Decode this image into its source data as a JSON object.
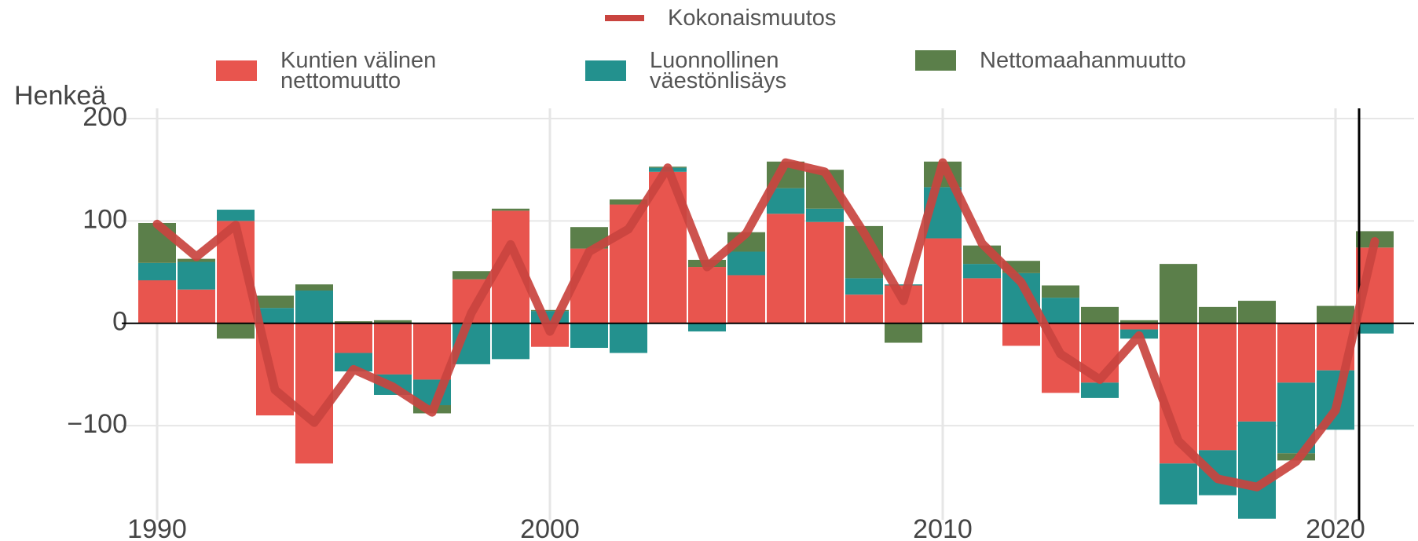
{
  "chart_data": {
    "type": "bar",
    "y_label": "Henkeä",
    "x": [
      1990,
      1991,
      1992,
      1993,
      1994,
      1995,
      1996,
      1997,
      1998,
      1999,
      2000,
      2001,
      2002,
      2003,
      2004,
      2005,
      2006,
      2007,
      2008,
      2009,
      2010,
      2011,
      2012,
      2013,
      2014,
      2015,
      2016,
      2017,
      2018,
      2019,
      2020,
      2021
    ],
    "series": [
      {
        "name": "Kuntien välinen nettomuutto",
        "color": "#e8554e",
        "type": "bar",
        "values": [
          42,
          33,
          100,
          -90,
          -137,
          -29,
          -50,
          -55,
          43,
          110,
          -23,
          73,
          116,
          148,
          55,
          47,
          107,
          99,
          28,
          37,
          83,
          44,
          -22,
          -68,
          -58,
          -6,
          -137,
          -124,
          -96,
          -58,
          -46,
          74
        ]
      },
      {
        "name": "Luonnollinen väestönlisäys",
        "color": "#23918e",
        "type": "bar",
        "values": [
          17,
          27,
          11,
          15,
          32,
          -18,
          -20,
          -25,
          -40,
          -35,
          12,
          -24,
          -29,
          4,
          -8,
          23,
          25,
          13,
          16,
          1,
          50,
          14,
          49,
          25,
          -15,
          -9,
          -40,
          -44,
          -95,
          -69,
          -58,
          -10
        ]
      },
      {
        "name": "Nettomaahanmuutto",
        "color": "#5b7f4a",
        "type": "bar",
        "values": [
          39,
          3,
          -15,
          12,
          6,
          2,
          3,
          -8,
          8,
          2,
          1,
          21,
          5,
          1,
          7,
          19,
          26,
          38,
          51,
          -19,
          25,
          18,
          12,
          12,
          16,
          3,
          58,
          16,
          22,
          -7,
          17,
          16
        ]
      },
      {
        "name": "Kokonaismuutos",
        "color": "#c9443f",
        "type": "line",
        "values": [
          97,
          65,
          96,
          -65,
          -97,
          -45,
          -62,
          -87,
          10,
          77,
          -8,
          70,
          92,
          152,
          55,
          88,
          157,
          148,
          88,
          22,
          157,
          78,
          40,
          -30,
          -55,
          -12,
          -115,
          -152,
          -160,
          -135,
          -85,
          80
        ]
      }
    ],
    "xlim": [
      1989.1,
      2022
    ],
    "xticks": [
      1990,
      2000,
      2010,
      2020
    ],
    "ylim": [
      -192,
      210
    ],
    "yticks": [
      {
        "value": -100,
        "label": "−100"
      },
      0,
      100,
      200
    ],
    "grid": true
  }
}
